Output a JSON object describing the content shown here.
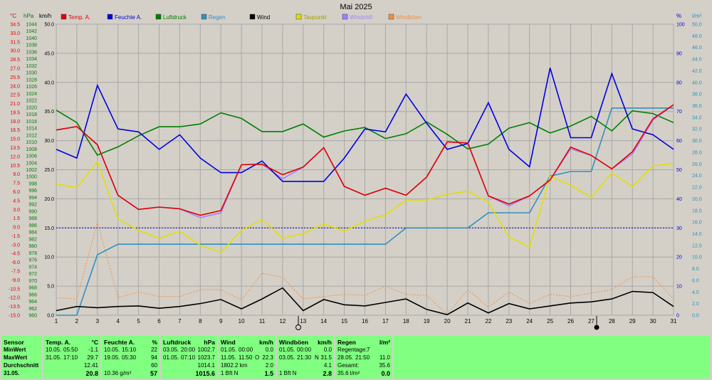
{
  "chart_data": {
    "type": "line",
    "title": "Mai 2025",
    "x": [
      1,
      2,
      3,
      4,
      5,
      6,
      7,
      8,
      9,
      10,
      11,
      12,
      13,
      14,
      15,
      16,
      17,
      18,
      19,
      20,
      21,
      22,
      23,
      24,
      25,
      26,
      27,
      28,
      29,
      30,
      31
    ],
    "axes": {
      "temp": {
        "unit": "°C",
        "range": [
          -15,
          34.5
        ],
        "ticks": [
          "34.5",
          "33.0",
          "31.5",
          "30.0",
          "28.5",
          "27.0",
          "25.5",
          "24.0",
          "22.5",
          "21.0",
          "19.5",
          "18.0",
          "16.5",
          "15.0",
          "13.5",
          "12.0",
          "10.5",
          "9.0",
          "7.5",
          "6.0",
          "4.5",
          "3.0",
          "1.5",
          "0.0",
          "-1.5",
          "-3.0",
          "-4.5",
          "-6.0",
          "-7.5",
          "-9.0",
          "-10.5",
          "-12.0",
          "-13.5",
          "-15.0"
        ]
      },
      "pressure": {
        "unit": "hPa",
        "range": [
          960,
          1044
        ],
        "ticks": [
          "1044",
          "1042",
          "1040",
          "1038",
          "1036",
          "1034",
          "1032",
          "1030",
          "1028",
          "1026",
          "1024",
          "1022",
          "1020",
          "1018",
          "1016",
          "1014",
          "1012",
          "1010",
          "1008",
          "1006",
          "1004",
          "1002",
          "1000",
          "998",
          "996",
          "994",
          "992",
          "990",
          "988",
          "986",
          "984",
          "982",
          "980",
          "978",
          "976",
          "974",
          "972",
          "970",
          "968",
          "966",
          "964",
          "962",
          "960"
        ]
      },
      "wind": {
        "unit": "km/h",
        "range": [
          0,
          50
        ],
        "ticks": [
          "50.0",
          "45.0",
          "40.0",
          "35.0",
          "30.0",
          "25.0",
          "20.0",
          "15.0",
          "10.0",
          "5.0",
          "0.0"
        ]
      },
      "humidity": {
        "unit": "%",
        "range": [
          0,
          100
        ],
        "ticks": [
          "100",
          "90",
          "80",
          "70",
          "60",
          "50",
          "40",
          "30",
          "20",
          "10",
          "0"
        ]
      },
      "rain": {
        "unit": "l/m²",
        "range": [
          0,
          50
        ],
        "ticks": [
          "50.0",
          "48.0",
          "46.0",
          "44.0",
          "42.0",
          "40.0",
          "38.0",
          "36.0",
          "34.0",
          "32.0",
          "30.0",
          "28.0",
          "26.0",
          "24.0",
          "22.0",
          "20.0",
          "18.0",
          "16.0",
          "14.0",
          "12.0",
          "10.0",
          "8.0",
          "6.0",
          "4.0",
          "2.0",
          "0.0"
        ]
      }
    },
    "grid": true,
    "legend_position": "top",
    "series": [
      {
        "name": "Temp. A.",
        "axis": "temp",
        "color": "#e00000",
        "style": "solid",
        "values": [
          16.5,
          17.1,
          14.0,
          5.4,
          3.0,
          3.4,
          3.1,
          2.0,
          2.8,
          10.6,
          10.7,
          8.9,
          10.2,
          13.5,
          6.9,
          5.4,
          6.6,
          5.4,
          8.5,
          14.5,
          14.3,
          5.3,
          3.9,
          5.3,
          8.0,
          13.6,
          12.2,
          9.9,
          12.8,
          18.4,
          20.8
        ]
      },
      {
        "name": "Feuchte A.",
        "axis": "humidity",
        "color": "#0000e0",
        "style": "solid",
        "values": [
          57,
          54,
          79,
          64,
          63,
          57,
          62,
          54,
          49,
          49,
          53,
          46,
          46,
          46,
          54,
          64,
          63,
          76,
          66,
          57,
          59,
          73,
          57,
          51,
          85,
          61,
          61,
          83,
          64,
          62,
          57
        ]
      },
      {
        "name": "Luftdruck",
        "axis": "pressure",
        "color": "#008000",
        "style": "solid",
        "values": [
          1019.2,
          1015.6,
          1006.2,
          1008.6,
          1011.8,
          1014.4,
          1014.4,
          1015.2,
          1018.4,
          1016.8,
          1013.0,
          1013.0,
          1015.2,
          1011.4,
          1013.2,
          1014.2,
          1011.0,
          1012.4,
          1015.8,
          1012.2,
          1008.0,
          1009.4,
          1014.0,
          1015.6,
          1012.6,
          1014.6,
          1017.4,
          1013.2,
          1019.0,
          1018.2,
          1015.6
        ]
      },
      {
        "name": "Regen",
        "axis": "rain",
        "color": "#3090c0",
        "style": "solid",
        "values": [
          0,
          0,
          10.4,
          12.2,
          12.2,
          12.2,
          12.2,
          12.2,
          12.2,
          12.2,
          12.2,
          12.2,
          12.2,
          12.2,
          12.2,
          12.2,
          12.2,
          15.0,
          15.0,
          15.0,
          15.0,
          17.6,
          17.6,
          17.6,
          23.9,
          24.7,
          24.7,
          35.6,
          35.6,
          35.6,
          35.6
        ]
      },
      {
        "name": "Wind",
        "axis": "wind",
        "color": "#000000",
        "style": "solid",
        "values": [
          0.8,
          1.5,
          1.3,
          1.5,
          1.6,
          1.2,
          1.5,
          2.0,
          2.7,
          1.1,
          2.8,
          4.7,
          0.8,
          2.7,
          1.8,
          1.6,
          2.2,
          2.8,
          1.0,
          0.1,
          2.1,
          0.4,
          2.0,
          1.1,
          1.6,
          2.1,
          2.3,
          2.8,
          4.1,
          3.9,
          1.5
        ]
      },
      {
        "name": "Taupunkt",
        "axis": "temp",
        "color": "#e0e000",
        "style": "solid",
        "values": [
          7.3,
          6.7,
          11.1,
          1.4,
          -0.6,
          -1.9,
          -0.7,
          -3.1,
          -4.3,
          -0.6,
          1.3,
          -1.9,
          -1.1,
          0.5,
          -0.7,
          1.0,
          2.1,
          4.6,
          4.6,
          5.6,
          6.1,
          4.2,
          -1.7,
          -3.4,
          8.6,
          7.1,
          5.0,
          9.2,
          6.9,
          10.4,
          10.8
        ]
      },
      {
        "name": "Windchill",
        "axis": "temp",
        "color": "#a080ff",
        "style": "solid",
        "values": [
          16.5,
          17.1,
          14.0,
          5.4,
          3.0,
          3.4,
          3.1,
          1.6,
          2.4,
          10.6,
          10.7,
          8.2,
          10.2,
          13.5,
          6.9,
          5.4,
          6.6,
          5.4,
          8.5,
          14.5,
          14.3,
          5.3,
          3.6,
          5.3,
          8.0,
          13.3,
          12.2,
          9.9,
          12.4,
          18.2,
          20.8
        ]
      },
      {
        "name": "Windböen",
        "axis": "wind",
        "color": "#f09040",
        "style": "dotted",
        "values": [
          3.0,
          2.8,
          16.0,
          3.0,
          4.0,
          3.2,
          3.2,
          4.4,
          4.4,
          2.6,
          7.2,
          6.5,
          2.8,
          3.2,
          3.6,
          3.4,
          5.0,
          3.6,
          3.4,
          0.2,
          4.4,
          1.4,
          4.0,
          2.0,
          3.6,
          3.2,
          3.8,
          4.4,
          6.6,
          6.6,
          2.8
        ]
      }
    ],
    "reference_line": {
      "axis": "humidity",
      "value": 30,
      "color": "#0000c0"
    }
  },
  "panel": {
    "sensor": {
      "title": "Sensor",
      "rows": [
        "MinWert",
        "MaxWert",
        "Durchschnitt",
        "31.05."
      ]
    },
    "temp": {
      "title": "Temp. A.",
      "unit": "°C",
      "min": {
        "date": "10.05.",
        "time": "05:50",
        "value": "-1.1"
      },
      "max": {
        "date": "31.05.",
        "time": "17:10",
        "value": "29.7"
      },
      "avg": "12.41",
      "today": "20.8"
    },
    "humidity": {
      "title": "Feuchte A.",
      "unit": "%",
      "min": {
        "date": "10.05.",
        "time": "15:10",
        "value": "22"
      },
      "max": {
        "date": "19.05.",
        "time": "05:30",
        "value": "94"
      },
      "avg": "60",
      "abs": "10.36 g/m³",
      "today": "57"
    },
    "pressure": {
      "title": "Luftdruck",
      "unit": "hPa",
      "min": {
        "date": "03.05.",
        "time": "20:00",
        "value": "1002.7"
      },
      "max": {
        "date": "01.05.",
        "time": "07:10",
        "value": "1023.7"
      },
      "avg": "1014.1",
      "today": "1015.6"
    },
    "wind": {
      "title": "Wind",
      "unit": "km/h",
      "min": {
        "date": "01.05.",
        "time": "00:00",
        "value": "0.0"
      },
      "max": {
        "date": "11.05.",
        "time": "11:50",
        "dir": "O",
        "value": "22.3"
      },
      "avg_text": "1802.2 km",
      "avg": "2.0",
      "today_dir": "1 Bft N",
      "today": "1.5"
    },
    "gust": {
      "title": "Windböen",
      "unit": "km/h",
      "min": {
        "date": "01.05.",
        "time": "00:00",
        "value": "0.0"
      },
      "max": {
        "date": "03.05.",
        "time": "21:30",
        "dir": "N",
        "value": "31.5"
      },
      "avg": "4.1",
      "today_dir": "1 Bft N",
      "today": "2.8"
    },
    "rain": {
      "title": "Regen",
      "unit": "l/m²",
      "row1_label": "Regentage:",
      "row1_value": "7",
      "row2_label": "28.05.",
      "row2_time": "21:50",
      "row2_value": "11.0",
      "row3_label": "Gesamt:",
      "row3_value": "35.6",
      "today_text": "35.6 l/m²",
      "today": "0.0"
    }
  }
}
